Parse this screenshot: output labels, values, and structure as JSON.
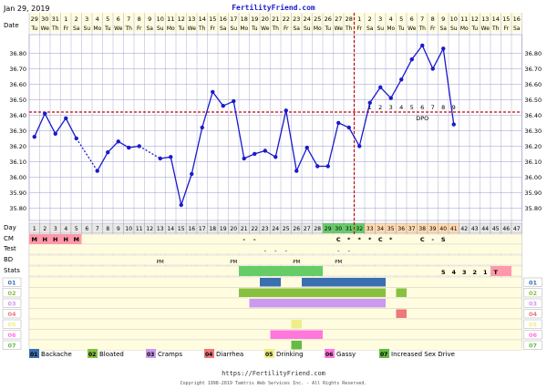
{
  "header": {
    "date_label": "Jan 29, 2019",
    "site": "FertilityFriend.com",
    "date_row_label": "Date"
  },
  "footer": {
    "url": "https://FertilityFriend.com",
    "copyright": "Copyright 1998-2019 Tamtris Web Services Inc. - All Rights Reserved."
  },
  "rows": {
    "day": "Day",
    "cm": "CM",
    "test": "Test",
    "bd": "BD",
    "stats": "Stats",
    "symptom_rows": [
      "01",
      "02",
      "03",
      "04",
      "05",
      "06",
      "07"
    ]
  },
  "colors": {
    "line": "#1a1acc",
    "coverline": "#cc0000",
    "grid": "#9999cc",
    "plot_bg": "#ffffff",
    "page_bg": "#fffce0",
    "highlight_green": "#66cc66",
    "highlight_orange": "#ffdab0",
    "cm_pink": "#ff99aa"
  },
  "chart_data": {
    "type": "line",
    "dates": [
      "29",
      "30",
      "31",
      "1",
      "2",
      "3",
      "4",
      "5",
      "6",
      "7",
      "8",
      "9",
      "10",
      "11",
      "12",
      "13",
      "14",
      "15",
      "16",
      "17",
      "18",
      "19",
      "20",
      "21",
      "22",
      "23",
      "24",
      "25",
      "26",
      "27",
      "28",
      "1",
      "2",
      "3",
      "4",
      "5",
      "6",
      "7",
      "8",
      "9",
      "10",
      "11",
      "12",
      "13",
      "14",
      "15",
      "16"
    ],
    "weekdays": [
      "Tu",
      "We",
      "Th",
      "Fr",
      "Sa",
      "Su",
      "Mo",
      "Tu",
      "We",
      "Th",
      "Fr",
      "Sa",
      "Su",
      "Mo",
      "Tu",
      "We",
      "Th",
      "Fr",
      "Sa",
      "Su",
      "Mo",
      "Tu",
      "We",
      "Th",
      "Fr",
      "Sa",
      "Su",
      "Mo",
      "Tu",
      "We",
      "Th",
      "Fr",
      "Sa",
      "Su",
      "Mo",
      "Tu",
      "We",
      "Th",
      "Fr",
      "Sa",
      "Su",
      "Mo",
      "Tu",
      "We",
      "Th",
      "Fr",
      "Sa"
    ],
    "cycle_days": [
      1,
      2,
      3,
      4,
      5,
      6,
      7,
      8,
      9,
      10,
      11,
      12,
      13,
      14,
      15,
      16,
      17,
      18,
      19,
      20,
      21,
      22,
      23,
      24,
      25,
      26,
      27,
      28,
      29,
      30,
      31,
      32,
      33,
      34,
      35,
      36,
      37,
      38,
      39,
      40,
      41,
      42,
      43,
      44,
      45,
      46,
      47
    ],
    "temps": [
      36.26,
      36.41,
      36.28,
      36.38,
      36.25,
      null,
      36.04,
      36.16,
      36.23,
      36.19,
      36.2,
      null,
      36.12,
      36.13,
      35.82,
      36.02,
      36.32,
      36.55,
      36.46,
      36.49,
      36.12,
      36.15,
      36.17,
      36.13,
      36.43,
      36.04,
      36.19,
      36.07,
      36.07,
      36.35,
      36.32,
      36.2,
      36.48,
      36.58,
      36.51,
      36.63,
      36.76,
      36.85,
      36.7,
      36.83,
      36.34,
      null,
      null,
      null,
      null,
      null,
      null
    ],
    "dashed_after": [
      5,
      11
    ],
    "ylim": [
      35.72,
      36.92
    ],
    "yticks": [
      "35.80",
      "35.90",
      "36.00",
      "36.10",
      "36.20",
      "36.30",
      "36.40",
      "36.50",
      "36.60",
      "36.70",
      "36.80"
    ],
    "coverline": 36.42,
    "ovulation_day": 32,
    "dpo_label": "DPO",
    "dpo": [
      {
        "day": 33,
        "n": "1"
      },
      {
        "day": 34,
        "n": "2"
      },
      {
        "day": 35,
        "n": "3"
      },
      {
        "day": 36,
        "n": "4"
      },
      {
        "day": 37,
        "n": "5"
      },
      {
        "day": 38,
        "n": "6"
      },
      {
        "day": 39,
        "n": "7"
      },
      {
        "day": 40,
        "n": "8"
      },
      {
        "day": 41,
        "n": "9"
      }
    ],
    "green_days": [
      29,
      30,
      31,
      32
    ],
    "orange_days": [
      33,
      34,
      35,
      36,
      37,
      38,
      39,
      40,
      41
    ],
    "cm": [
      {
        "day": 1,
        "v": "M"
      },
      {
        "day": 2,
        "v": "H"
      },
      {
        "day": 3,
        "v": "H"
      },
      {
        "day": 4,
        "v": "H"
      },
      {
        "day": 5,
        "v": "M"
      },
      {
        "day": 21,
        "v": "-"
      },
      {
        "day": 22,
        "v": "-"
      },
      {
        "day": 30,
        "v": "C"
      },
      {
        "day": 31,
        "v": "*"
      },
      {
        "day": 32,
        "v": "*"
      },
      {
        "day": 33,
        "v": "*"
      },
      {
        "day": 34,
        "v": "C"
      },
      {
        "day": 35,
        "v": "*"
      },
      {
        "day": 38,
        "v": "C"
      },
      {
        "day": 39,
        "v": "-"
      },
      {
        "day": 40,
        "v": "S"
      }
    ],
    "cm_pink_days": [
      1,
      2,
      3,
      4,
      5
    ],
    "test": [
      {
        "day": 23,
        "v": "-"
      },
      {
        "day": 24,
        "v": "-"
      },
      {
        "day": 25,
        "v": "-"
      },
      {
        "day": 30,
        "v": "-"
      },
      {
        "day": 31,
        "v": "-"
      }
    ],
    "bd": [
      {
        "day": 13,
        "v": "PM"
      },
      {
        "day": 20,
        "v": "PM"
      },
      {
        "day": 26,
        "v": "PM"
      },
      {
        "day": 30,
        "v": "PM"
      }
    ],
    "stats": [
      {
        "day": 40,
        "v": "5"
      },
      {
        "day": 41,
        "v": "4"
      },
      {
        "day": 42,
        "v": "3"
      },
      {
        "day": 43,
        "v": "2"
      },
      {
        "day": 44,
        "v": "1"
      },
      {
        "day": 45,
        "v": "T"
      }
    ],
    "stats_pink_days": [
      45,
      46
    ],
    "symptom_bars": [
      {
        "row": 0,
        "start": 23,
        "end": 24
      },
      {
        "row": 0,
        "start": 27,
        "end": 34
      },
      {
        "row": 1,
        "start": 21,
        "end": 34
      },
      {
        "row": 1,
        "start": 36,
        "end": 36
      },
      {
        "row": 2,
        "start": 22,
        "end": 34
      },
      {
        "row": 3,
        "start": 36,
        "end": 36
      },
      {
        "row": 4,
        "start": 26,
        "end": 26
      },
      {
        "row": 5,
        "start": 24,
        "end": 28
      },
      {
        "row": 6,
        "start": 26,
        "end": 26
      }
    ],
    "stats_bar": {
      "start": 21,
      "end": 28
    },
    "legend": [
      {
        "code": "01",
        "name": "Backache",
        "color": "#3a6fb0"
      },
      {
        "code": "02",
        "name": "Bloated",
        "color": "#88c040"
      },
      {
        "code": "03",
        "name": "Cramps",
        "color": "#cc99ee"
      },
      {
        "code": "04",
        "name": "Diarrhea",
        "color": "#ee7777"
      },
      {
        "code": "05",
        "name": "Drinking",
        "color": "#eeee88"
      },
      {
        "code": "06",
        "name": "Gassy",
        "color": "#ff77dd"
      },
      {
        "code": "07",
        "name": "Increased Sex Drive",
        "color": "#66bb44"
      }
    ]
  }
}
